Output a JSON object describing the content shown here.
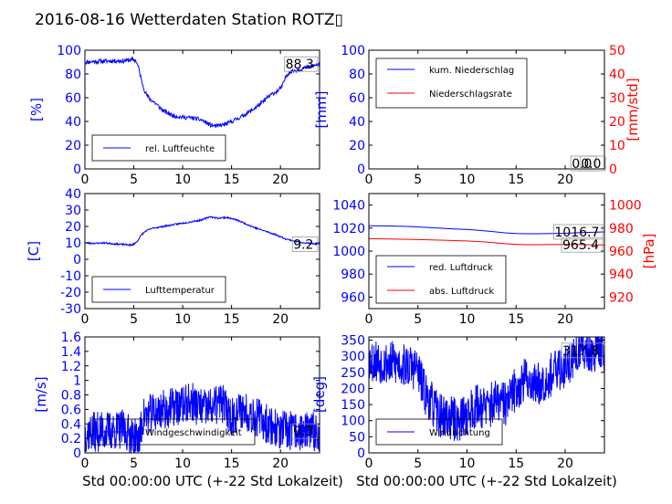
{
  "title": "2016-08-16 Wetterdaten Station ROTZ▯",
  "xlabel": "Std 00:00:00 UTC (+-22 Std Lokalzeit)",
  "colors": {
    "left_axis": "#0000ff",
    "right_axis": "#ff0000",
    "series_blue": "#0000ff",
    "series_red": "#ff0000"
  },
  "chart_data": [
    {
      "type": "line",
      "panel": "humidity",
      "xlim": [
        0,
        24
      ],
      "ylim": [
        0,
        100
      ],
      "xticks": [
        0,
        5,
        10,
        15,
        20
      ],
      "yticks": [
        0,
        20,
        40,
        60,
        80,
        100
      ],
      "ylabel": "[%]",
      "grid": false,
      "legend": "lower-left",
      "annotation": "88.3",
      "series": [
        {
          "name": "rel. Luftfeuchte",
          "color": "#0000ff",
          "x": [
            0,
            1,
            2,
            3,
            4,
            4.8,
            5.2,
            5.5,
            5.8,
            6.2,
            6.6,
            7,
            7.5,
            8,
            8.5,
            9,
            10,
            11,
            12,
            12.8,
            13.5,
            14,
            14.5,
            15,
            16,
            17,
            18,
            18.8,
            19.3,
            19.8,
            20.2,
            20.6,
            21,
            22,
            23,
            24
          ],
          "y": [
            90,
            90.5,
            90.8,
            91,
            91,
            92,
            91.5,
            85,
            74,
            64,
            59,
            57,
            53,
            49,
            47,
            45,
            43.5,
            43,
            41,
            37,
            36,
            37,
            38,
            40,
            44,
            49,
            55,
            61,
            64,
            66,
            70,
            79,
            82,
            84,
            86,
            88.3
          ],
          "noise": 1.8,
          "seed": 11
        }
      ]
    },
    {
      "type": "line",
      "panel": "precipitation",
      "xlim": [
        0,
        24
      ],
      "ylim": [
        0,
        100
      ],
      "y2lim": [
        0,
        50
      ],
      "xticks": [
        0,
        5,
        10,
        15,
        20
      ],
      "yticks": [
        0,
        20,
        40,
        60,
        80,
        100
      ],
      "y2ticks": [
        0,
        10,
        20,
        30,
        40,
        50
      ],
      "ylabel": "[mm]",
      "y2label": "[mm/std]",
      "grid": false,
      "legend": "upper-left",
      "annotations": [
        "0.0",
        "0.0"
      ],
      "series": [
        {
          "name": "kum. Niederschlag",
          "color": "#0000ff",
          "x": [
            0,
            24
          ],
          "y": [
            0,
            0
          ],
          "axis": "left"
        },
        {
          "name": "Niederschlagsrate",
          "color": "#ff0000",
          "x": [
            0,
            24
          ],
          "y": [
            0,
            0
          ],
          "axis": "right"
        }
      ]
    },
    {
      "type": "line",
      "panel": "temperature",
      "xlim": [
        0,
        24
      ],
      "ylim": [
        -30,
        40
      ],
      "xticks": [
        0,
        5,
        10,
        15,
        20
      ],
      "yticks": [
        -30,
        -20,
        -10,
        0,
        10,
        20,
        30,
        40
      ],
      "ylabel": "[C]",
      "grid": false,
      "legend": "lower-left",
      "annotation": "9.2",
      "series": [
        {
          "name": "Lufttemperatur",
          "color": "#0000ff",
          "x": [
            0,
            1,
            2,
            3,
            4,
            4.8,
            5.3,
            5.8,
            6.3,
            7,
            8,
            9,
            10,
            11,
            12,
            12.8,
            13.5,
            14.5,
            15.5,
            16.5,
            17.5,
            18.5,
            19.5,
            20.5,
            21.5,
            22.5,
            23.5,
            24
          ],
          "y": [
            10,
            9.7,
            10,
            9.4,
            9,
            8.6,
            10.5,
            15,
            17.5,
            19,
            20,
            21,
            22,
            23,
            24,
            26,
            25,
            25.5,
            24,
            21.5,
            19,
            17,
            15,
            12.5,
            11,
            10,
            9.4,
            9.2
          ],
          "noise": 0.5,
          "seed": 23
        }
      ]
    },
    {
      "type": "line",
      "panel": "pressure",
      "xlim": [
        0,
        24
      ],
      "ylim": [
        950,
        1050
      ],
      "y2lim": [
        910,
        1010
      ],
      "xticks": [
        0,
        5,
        10,
        15,
        20
      ],
      "yticks": [
        960,
        980,
        1000,
        1020,
        1040
      ],
      "y2ticks": [
        920,
        940,
        960,
        980,
        1000
      ],
      "ylabel": "",
      "y2label": "[hPa]",
      "grid": false,
      "legend": "lower-left",
      "annotations": [
        "1016.7",
        "965.4"
      ],
      "series": [
        {
          "name": "red. Luftdruck",
          "color": "#0000ff",
          "x": [
            0,
            2,
            4,
            6,
            8,
            10,
            12,
            14,
            15,
            16,
            17,
            18,
            20,
            22,
            24
          ],
          "y": [
            1022,
            1021.8,
            1021.4,
            1020.5,
            1019.5,
            1018.8,
            1017.5,
            1015.8,
            1015.3,
            1015.1,
            1015.1,
            1015.2,
            1015.5,
            1016.2,
            1016.7
          ],
          "axis": "left"
        },
        {
          "name": "abs. Luftdruck",
          "color": "#ff0000",
          "x": [
            0,
            2,
            4,
            6,
            8,
            10,
            12,
            14,
            15,
            16,
            17,
            18,
            20,
            22,
            24
          ],
          "y": [
            970.8,
            970.5,
            970.2,
            969.8,
            969.3,
            968.8,
            967.8,
            966.3,
            965.9,
            965.6,
            965.6,
            965.7,
            965.8,
            965.6,
            965.4
          ],
          "axis": "right"
        }
      ]
    },
    {
      "type": "line",
      "panel": "wind-speed",
      "xlim": [
        0,
        24
      ],
      "ylim": [
        0,
        1.6
      ],
      "xticks": [
        0,
        5,
        10,
        15,
        20
      ],
      "yticks": [
        0,
        0.2,
        0.4,
        0.6,
        0.8,
        1.0,
        1.2,
        1.4,
        1.6
      ],
      "ylabel": "[m/s]",
      "grid": false,
      "legend": "lower-left",
      "annotation": "0.3",
      "series": [
        {
          "name": "Windgeschwindigkeit",
          "color": "#0000ff",
          "x": [
            0,
            2,
            4,
            5.5,
            6,
            7,
            8,
            10,
            11,
            12,
            13,
            14,
            15,
            16,
            17,
            18,
            19,
            20,
            21,
            22,
            23,
            24
          ],
          "y": [
            0.28,
            0.3,
            0.32,
            0.15,
            0.5,
            0.55,
            0.6,
            0.65,
            0.7,
            0.6,
            0.62,
            0.7,
            0.5,
            0.6,
            0.55,
            0.45,
            0.38,
            0.3,
            0.3,
            0.3,
            0.28,
            0.3
          ],
          "noise": 0.28,
          "seed": 37,
          "n": 720
        }
      ]
    },
    {
      "type": "line",
      "panel": "wind-direction",
      "xlim": [
        0,
        24
      ],
      "ylim": [
        0,
        360
      ],
      "xticks": [
        0,
        5,
        10,
        15,
        20
      ],
      "yticks": [
        0,
        50,
        100,
        150,
        200,
        250,
        300,
        350
      ],
      "ylabel": "[deg]",
      "grid": false,
      "legend": "lower-left",
      "annotation": "317.8",
      "series": [
        {
          "name": "Windrichtung",
          "color": "#0000ff",
          "x": [
            0,
            2,
            4,
            5,
            5.5,
            7,
            9,
            10,
            11,
            12,
            13,
            14,
            15,
            16,
            17,
            18,
            19,
            20,
            21,
            22,
            23,
            24
          ],
          "y": [
            290,
            280,
            270,
            260,
            200,
            120,
            100,
            120,
            150,
            140,
            160,
            150,
            200,
            230,
            210,
            230,
            250,
            270,
            300,
            320,
            320,
            318
          ],
          "noise": 70,
          "seed": 53,
          "n": 720
        }
      ]
    }
  ]
}
